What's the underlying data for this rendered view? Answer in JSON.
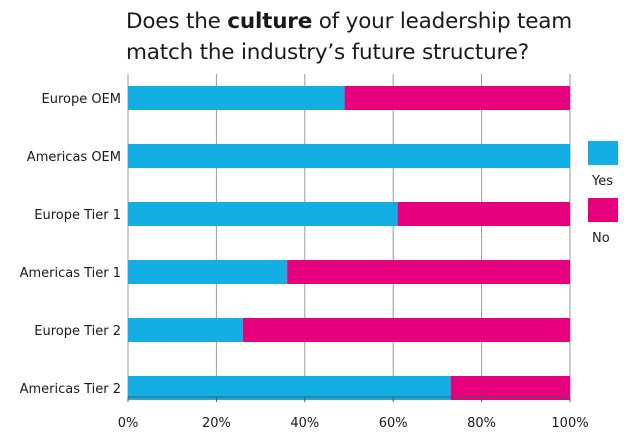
{
  "chart_data": {
    "type": "bar",
    "orientation": "horizontal",
    "stacked": true,
    "title_parts": [
      {
        "text": "Does the ",
        "bold": false
      },
      {
        "text": "culture",
        "bold": true
      },
      {
        "text": " of your leadership team match the industry’s future structure?",
        "bold": false
      }
    ],
    "categories": [
      "Europe OEM",
      "Americas OEM",
      "Europe Tier 1",
      "Americas Tier 1",
      "Europe Tier 2",
      "Americas Tier 2"
    ],
    "series": [
      {
        "name": "Yes",
        "color": "#12aee4",
        "values": [
          49,
          100,
          61,
          36,
          26,
          73
        ]
      },
      {
        "name": "No",
        "color": "#e6007e",
        "values": [
          51,
          0,
          39,
          64,
          74,
          27
        ]
      }
    ],
    "xlim": [
      0,
      100
    ],
    "xticks": [
      "0%",
      "20%",
      "40%",
      "60%",
      "80%",
      "100%"
    ],
    "grid": true,
    "legend_position": "right"
  }
}
